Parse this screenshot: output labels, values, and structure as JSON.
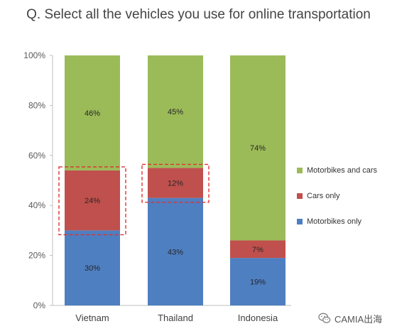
{
  "title": "Q. Select all the vehicles you use for online transportation",
  "chart_data": {
    "type": "bar",
    "stacked": true,
    "categories": [
      "Vietnam",
      "Thailand",
      "Indonesia"
    ],
    "series": [
      {
        "name": "Motorbikes only",
        "color": "#4e7fc1",
        "values": [
          30,
          43,
          19
        ],
        "labels": [
          "30%",
          "43%",
          "19%"
        ]
      },
      {
        "name": "Cars only",
        "color": "#c0504d",
        "values": [
          24,
          12,
          7
        ],
        "labels": [
          "24%",
          "12%",
          "7%"
        ]
      },
      {
        "name": "Motorbikes and cars",
        "color": "#9bbb59",
        "values": [
          46,
          45,
          74
        ],
        "labels": [
          "46%",
          "45%",
          "74%"
        ]
      }
    ],
    "ylim": [
      0,
      100
    ],
    "yticks": [
      0,
      20,
      40,
      60,
      80,
      100
    ],
    "ytick_labels": [
      "0%",
      "20%",
      "40%",
      "60%",
      "80%",
      "100%"
    ],
    "grid": false,
    "legend_position": "right",
    "highlight": {
      "style": "red dashed box",
      "series": "Cars only",
      "categories": [
        "Vietnam",
        "Thailand"
      ]
    }
  },
  "legend": {
    "items": [
      {
        "label": "Motorbikes and cars",
        "color": "#9bbb59"
      },
      {
        "label": "Cars only",
        "color": "#c0504d"
      },
      {
        "label": "Motorbikes only",
        "color": "#4e7fc1"
      }
    ]
  },
  "watermark": {
    "text": "CAMIA出海",
    "icon": "wechat-icon"
  }
}
